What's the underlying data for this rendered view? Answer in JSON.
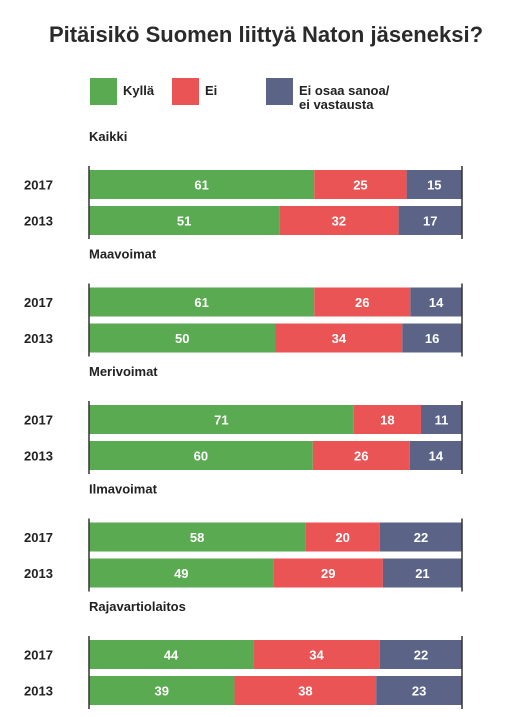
{
  "page": {
    "title": "Pitäisikö Suomen liittyä Naton jäseneksi?"
  },
  "colors": {
    "yes": "#5aaa52",
    "no": "#ea5455",
    "dk": "#5b6487",
    "axis": "#333333"
  },
  "chart_data": {
    "type": "bar",
    "orientation": "horizontal",
    "stacked": true,
    "unit": "%",
    "title": "Pitäisikö Suomen liittyä Naton jäseneksi?",
    "legend": {
      "placement": "top",
      "entries": [
        "Kyllä",
        "Ei",
        "Ei osaa sanoa/\nei vastausta"
      ]
    },
    "series_names": [
      "Kyllä",
      "Ei",
      "Ei osaa sanoa/\nei vastausta"
    ],
    "groups": [
      {
        "name": "Kaikki",
        "rows": [
          {
            "year": "2017",
            "values": [
              61,
              25,
              15
            ]
          },
          {
            "year": "2013",
            "values": [
              51,
              32,
              17
            ]
          }
        ]
      },
      {
        "name": "Maavoimat",
        "rows": [
          {
            "year": "2017",
            "values": [
              61,
              26,
              14
            ]
          },
          {
            "year": "2013",
            "values": [
              50,
              34,
              16
            ]
          }
        ]
      },
      {
        "name": "Merivoimat",
        "rows": [
          {
            "year": "2017",
            "values": [
              71,
              18,
              11
            ]
          },
          {
            "year": "2013",
            "values": [
              60,
              26,
              14
            ]
          }
        ]
      },
      {
        "name": "Ilmavoimat",
        "rows": [
          {
            "year": "2017",
            "values": [
              58,
              20,
              22
            ]
          },
          {
            "year": "2013",
            "values": [
              49,
              29,
              21
            ]
          }
        ]
      },
      {
        "name": "Rajavartiolaitos",
        "rows": [
          {
            "year": "2017",
            "values": [
              44,
              34,
              22
            ]
          },
          {
            "year": "2013",
            "values": [
              39,
              38,
              23
            ]
          }
        ]
      }
    ]
  }
}
